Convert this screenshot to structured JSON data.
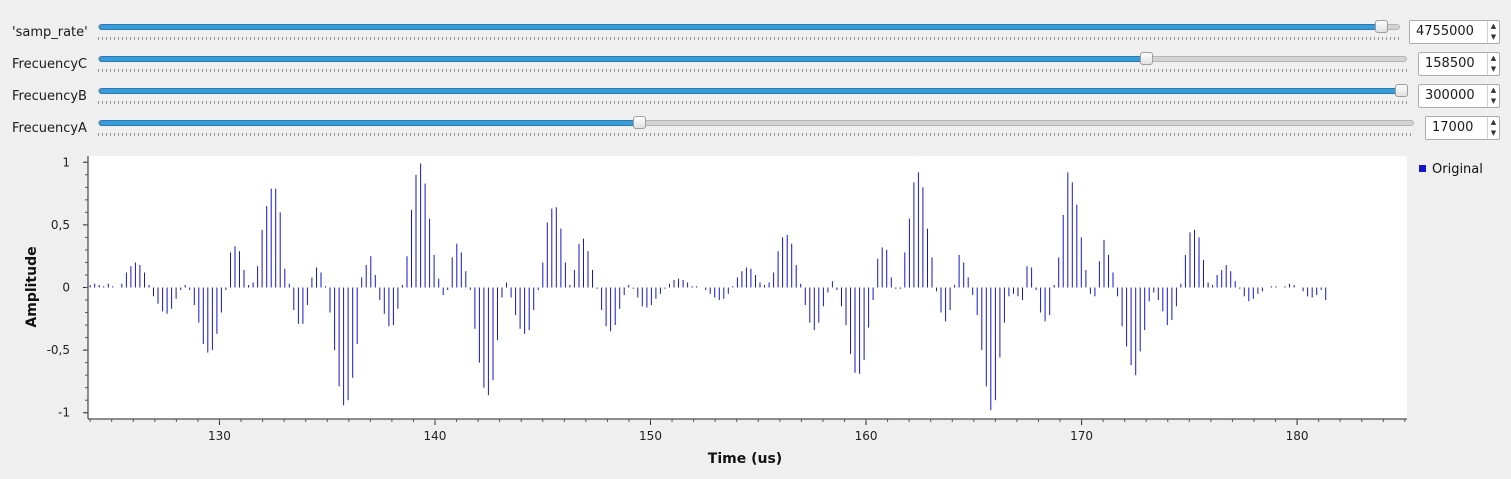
{
  "sliders": [
    {
      "label": "'samp_rate'",
      "value": "4755000",
      "fraction": 0.985
    },
    {
      "label": "FrecuencyC",
      "value": "158500",
      "fraction": 0.8
    },
    {
      "label": "FrecuencyB",
      "value": "300000",
      "fraction": 0.995
    },
    {
      "label": "FrecuencyA",
      "value": "17000",
      "fraction": 0.41
    }
  ],
  "plot": {
    "ylabel": "Amplitude",
    "xlabel": "Time (us)",
    "legend": "Original",
    "color": "#1515cc",
    "x_ticks": [
      "130",
      "140",
      "150",
      "160",
      "170",
      "180"
    ],
    "y_ticks": [
      "1",
      "0,5",
      "0",
      "-0,5",
      "-1"
    ]
  },
  "chart_data": {
    "type": "stem",
    "title": "",
    "xlabel": "Time (us)",
    "ylabel": "Amplitude",
    "xlim": [
      123.9,
      185.1
    ],
    "ylim": [
      -1.05,
      1.05
    ],
    "series": [
      {
        "name": "Original",
        "color": "#1515cc",
        "x_start": 124.0,
        "x_step": 0.21,
        "values": [
          0.02,
          0.03,
          0.02,
          0.01,
          0.03,
          0.01,
          0,
          0.03,
          0.12,
          0.17,
          0.2,
          0.18,
          0.12,
          0.02,
          -0.07,
          -0.13,
          -0.19,
          -0.21,
          -0.17,
          -0.09,
          -0.02,
          0.02,
          -0.02,
          -0.14,
          -0.28,
          -0.45,
          -0.52,
          -0.5,
          -0.37,
          -0.2,
          -0.02,
          0.28,
          0.33,
          0.29,
          0.14,
          0.02,
          0.04,
          0.17,
          0.46,
          0.65,
          0.79,
          0.79,
          0.6,
          0.15,
          0.03,
          -0.18,
          -0.29,
          -0.29,
          -0.14,
          0.08,
          0.16,
          0.12,
          0.01,
          -0.2,
          -0.5,
          -0.79,
          -0.94,
          -0.9,
          -0.72,
          -0.45,
          0.08,
          0.18,
          0.25,
          0.1,
          -0.1,
          -0.21,
          -0.31,
          -0.3,
          -0.17,
          0.02,
          0.25,
          0.62,
          0.9,
          0.99,
          0.83,
          0.55,
          0.26,
          0.07,
          -0.06,
          -0.02,
          0.24,
          0.35,
          0.28,
          0.13,
          -0.02,
          -0.33,
          -0.6,
          -0.8,
          -0.86,
          -0.74,
          -0.42,
          -0.08,
          0.04,
          -0.08,
          -0.22,
          -0.33,
          -0.37,
          -0.34,
          -0.18,
          -0.02,
          0.2,
          0.52,
          0.63,
          0.64,
          0.47,
          0.2,
          0.02,
          0.14,
          0.35,
          0.39,
          0.29,
          0.14,
          -0.01,
          -0.18,
          -0.31,
          -0.35,
          -0.3,
          -0.17,
          -0.06,
          0.02,
          -0.01,
          -0.08,
          -0.15,
          -0.16,
          -0.14,
          -0.09,
          -0.05,
          -0.01,
          0.03,
          0.06,
          0.07,
          0.06,
          0.04,
          0.01,
          0.01,
          0,
          -0.02,
          -0.05,
          -0.08,
          -0.1,
          -0.09,
          -0.05,
          0.01,
          0.08,
          0.13,
          0.16,
          0.15,
          0.1,
          0.04,
          0.02,
          0.04,
          0.12,
          0.29,
          0.4,
          0.42,
          0.35,
          0.18,
          0.03,
          -0.14,
          -0.28,
          -0.34,
          -0.28,
          -0.15,
          -0.04,
          0.05,
          -0.02,
          -0.15,
          -0.3,
          -0.53,
          -0.68,
          -0.69,
          -0.58,
          -0.32,
          -0.1,
          0.23,
          0.32,
          0.3,
          0.08,
          -0.01,
          -0.01,
          0.28,
          0.55,
          0.84,
          0.92,
          0.8,
          0.47,
          0.24,
          -0.03,
          -0.2,
          -0.27,
          -0.18,
          0.02,
          0.26,
          0.2,
          0.08,
          -0.06,
          -0.22,
          -0.5,
          -0.79,
          -0.98,
          -0.9,
          -0.56,
          -0.28,
          -0.07,
          -0.05,
          -0.07,
          -0.1,
          0.17,
          0.16,
          -0.02,
          -0.2,
          -0.27,
          -0.22,
          0.02,
          0.24,
          0.58,
          0.92,
          0.84,
          0.66,
          0.4,
          0.14,
          -0.05,
          -0.07,
          0.21,
          0.38,
          0.26,
          0.12,
          -0.07,
          -0.31,
          -0.47,
          -0.62,
          -0.7,
          -0.51,
          -0.34,
          -0.11,
          -0.04,
          -0.1,
          -0.19,
          -0.3,
          -0.26,
          -0.15,
          0.03,
          0.26,
          0.44,
          0.46,
          0.4,
          0.22,
          0.04,
          0.02,
          0.1,
          0.14,
          0.18,
          0.13,
          0.05,
          -0.01,
          -0.07,
          -0.11,
          -0.09,
          -0.05,
          -0.03,
          0,
          0.01,
          0.01,
          0,
          0.01,
          0.03,
          0.02,
          0,
          -0.03,
          -0.07,
          -0.08,
          -0.06,
          -0.02,
          -0.1
        ]
      }
    ],
    "grid": false,
    "legend_position": "top-right"
  }
}
